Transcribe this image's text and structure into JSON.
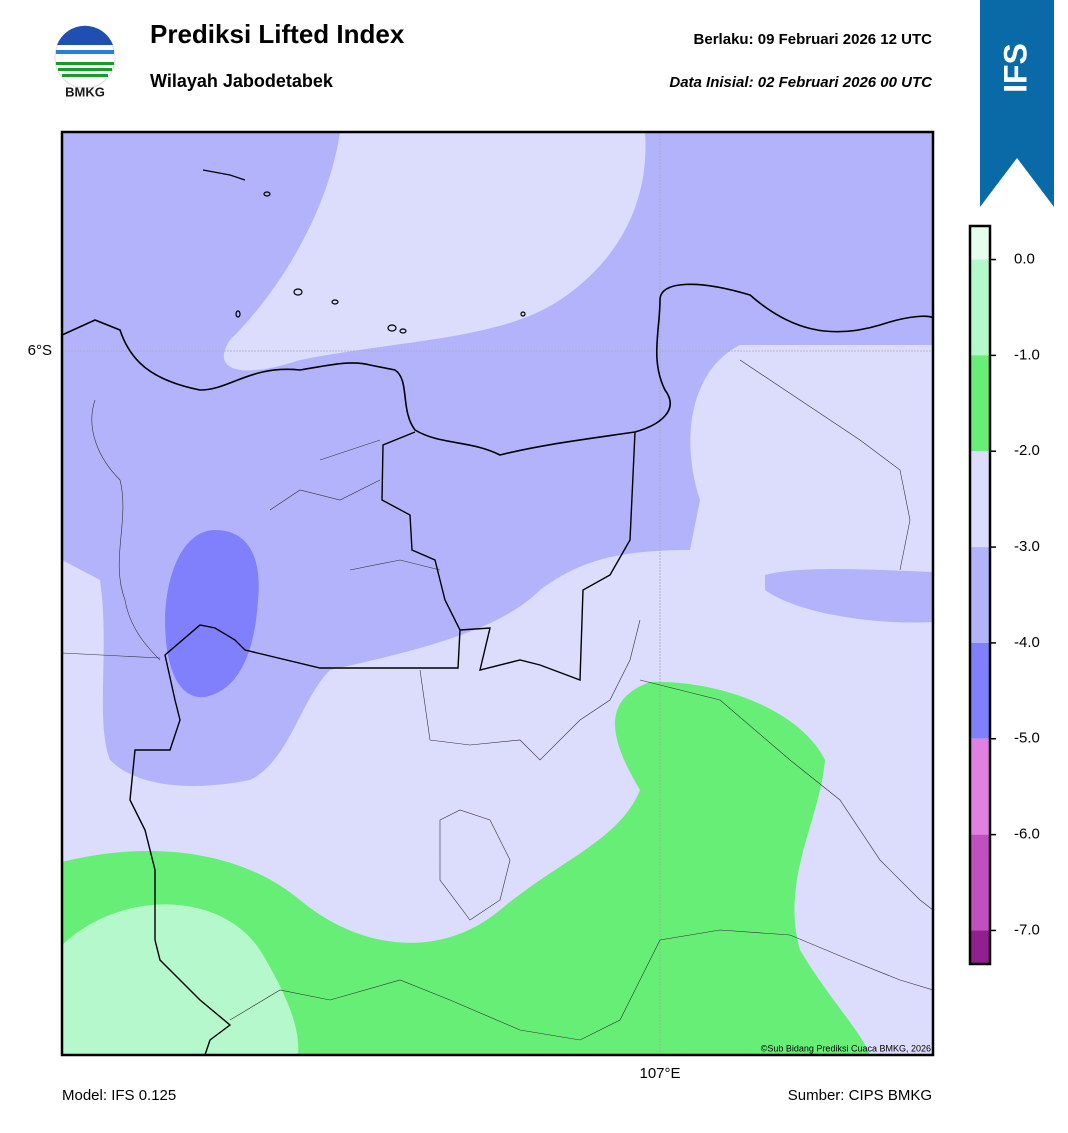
{
  "header": {
    "title": "Prediksi Lifted Index",
    "subtitle": "Wilayah Jabodetabek",
    "valid": "Berlaku:  09 Februari 2026 12 UTC",
    "init": "Data Inisial:  02 Februari 2026 00 UTC",
    "logo": "BMKG",
    "badge": "IFS"
  },
  "map": {
    "lat_label": "6°S",
    "lon_label": "107°E",
    "credit": "©Sub Bidang Prediksi Cuaca BMKG, 2026"
  },
  "colorbar": {
    "ylim": [
      -7.35,
      0.35
    ],
    "levels": [
      {
        "value": 0,
        "label": "0.0"
      },
      {
        "value": -1,
        "label": "-1.0"
      },
      {
        "value": -2,
        "label": "-2.0"
      },
      {
        "value": -3,
        "label": "-3.0"
      },
      {
        "value": -4,
        "label": "-4.0"
      },
      {
        "value": -5,
        "label": "-5.0"
      },
      {
        "value": -6,
        "label": "-6.0"
      },
      {
        "value": -7,
        "label": "-7.0"
      }
    ],
    "colors": [
      "#e4fdec",
      "#b5f8cc",
      "#66ee77",
      "#dcdcfc",
      "#b3b3fc",
      "#8080fc",
      "#e080e0",
      "#c050c0",
      "#902090"
    ]
  },
  "footer": {
    "model": "Model: IFS 0.125",
    "source": "Sumber: CIPS BMKG"
  }
}
